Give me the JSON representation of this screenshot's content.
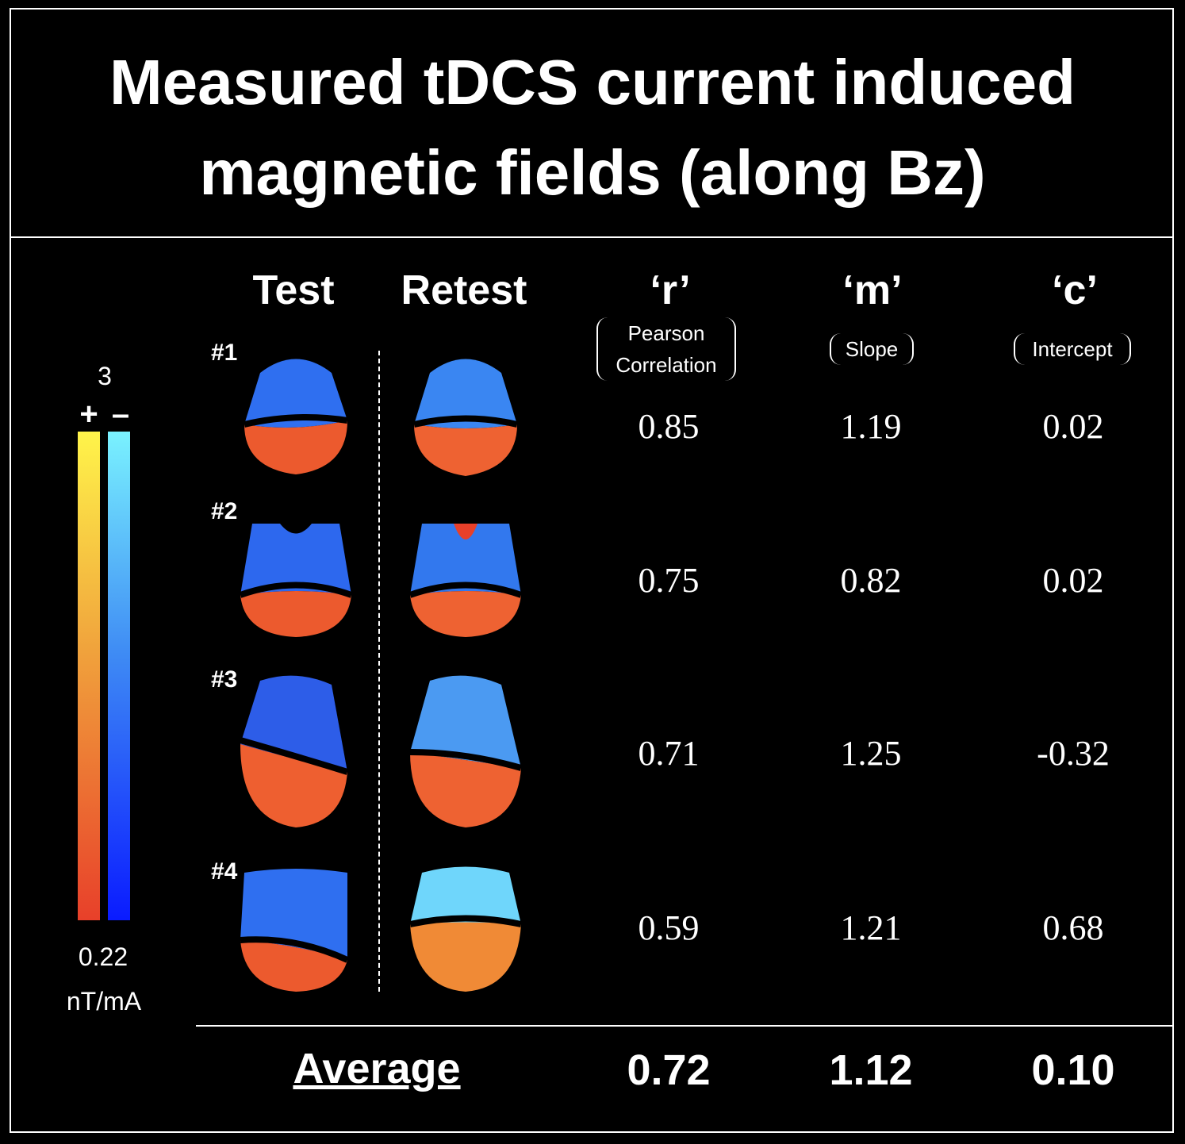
{
  "title": {
    "line1": "Measured tDCS current induced",
    "line2": "magnetic fields (along Bz)"
  },
  "headers": {
    "test": "Test",
    "retest": "Retest",
    "r": "‘r’",
    "r_sub1": "Pearson",
    "r_sub2": "Correlation",
    "m": "‘m’",
    "m_sub": "Slope",
    "c": "‘c’",
    "c_sub": "Intercept"
  },
  "colorbar": {
    "max_label": "3",
    "plus_sign": "+",
    "minus_sign": "–",
    "min_label": "0.22",
    "unit": "nT/mA",
    "positive_colors": [
      "#fff44a",
      "#f0a23c",
      "#e8402a"
    ],
    "negative_colors": [
      "#7af2ff",
      "#3f8cf4",
      "#0a1bff"
    ]
  },
  "subjects": [
    {
      "label": "#1",
      "r": "0.85",
      "m": "1.19",
      "c": "0.02"
    },
    {
      "label": "#2",
      "r": "0.75",
      "m": "0.82",
      "c": "0.02"
    },
    {
      "label": "#3",
      "r": "0.71",
      "m": "1.25",
      "c": "-0.32"
    },
    {
      "label": "#4",
      "r": "0.59",
      "m": "1.21",
      "c": "0.68"
    }
  ],
  "average": {
    "label": "Average",
    "r": "0.72",
    "m": "1.12",
    "c": "0.10"
  }
}
